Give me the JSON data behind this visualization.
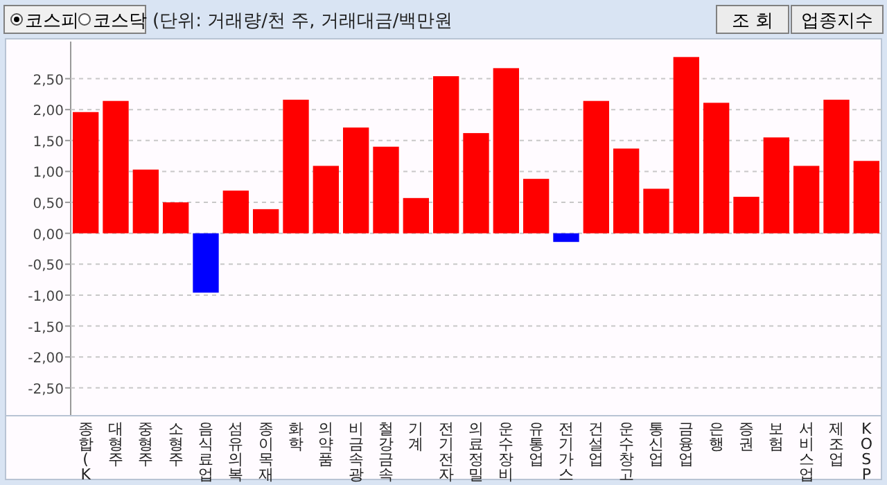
{
  "chart_data": {
    "type": "bar",
    "annotations": [
      "코스피",
      "코스닥",
      "(단위: 거래량/천 주, 거래대금/백만원",
      "조 회",
      "업종지수"
    ],
    "categories": [
      "종합(K",
      "대형주",
      "중형주",
      "소형주",
      "음식료업",
      "섬유의복",
      "종이목재",
      "화학",
      "의약품",
      "비금속광",
      "철강금속",
      "기계",
      "전기전자",
      "의료정밀",
      "운수장비",
      "유통업",
      "전기가스",
      "건설업",
      "운수창고",
      "통신업",
      "금융업",
      "은행",
      "증권",
      "보험",
      "서비스업",
      "제조업",
      "KOSP"
    ],
    "values": [
      1.96,
      2.14,
      1.03,
      0.5,
      -0.96,
      0.69,
      0.39,
      2.16,
      1.09,
      1.71,
      1.4,
      0.57,
      2.54,
      1.62,
      2.67,
      0.88,
      -0.14,
      2.14,
      1.37,
      0.72,
      2.85,
      2.11,
      0.59,
      1.55,
      1.09,
      2.16,
      1.17
    ],
    "colors": [
      "#ff0000",
      "#ff0000",
      "#ff0000",
      "#ff0000",
      "#0000ff",
      "#ff0000",
      "#ff0000",
      "#ff0000",
      "#ff0000",
      "#ff0000",
      "#ff0000",
      "#ff0000",
      "#ff0000",
      "#ff0000",
      "#ff0000",
      "#ff0000",
      "#0000ff",
      "#ff0000",
      "#ff0000",
      "#ff0000",
      "#ff0000",
      "#ff0000",
      "#ff0000",
      "#ff0000",
      "#ff0000",
      "#ff0000",
      "#ff0000"
    ],
    "ylim": [
      -2.95,
      3.1
    ],
    "yticks": [
      {
        "value": -2.5,
        "label": "-2,50"
      },
      {
        "value": -2,
        "label": "-2,00"
      },
      {
        "value": -1.5,
        "label": "-1,50"
      },
      {
        "value": -1,
        "label": "-1,00"
      },
      {
        "value": -0.5,
        "label": "-0,50"
      },
      {
        "value": 0,
        "label": "0,00"
      },
      {
        "value": 0.5,
        "label": "0,50"
      },
      {
        "value": 1,
        "label": "1,00"
      },
      {
        "value": 1.5,
        "label": "1,50"
      },
      {
        "value": 2,
        "label": "2,00"
      },
      {
        "value": 2.5,
        "label": "2,50"
      }
    ],
    "grid": "y"
  }
}
